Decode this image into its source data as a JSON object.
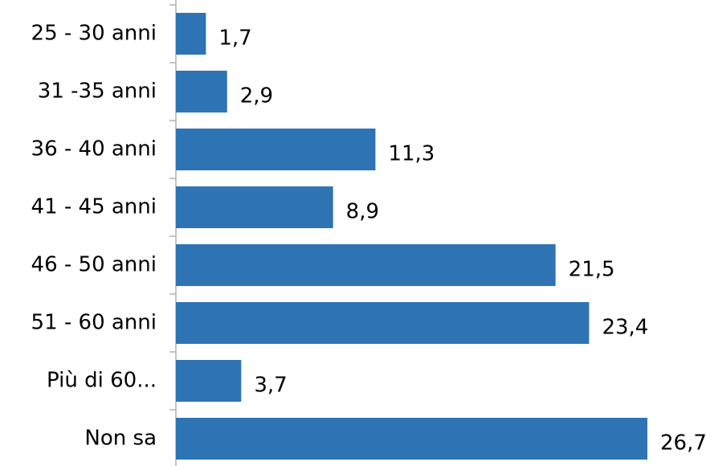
{
  "chart_data": {
    "type": "hbar",
    "categories": [
      "25 - 30 anni",
      "31 -35 anni",
      "36 - 40 anni",
      "41 - 45 anni",
      "46 - 50 anni",
      "51 - 60 anni",
      "Più di 60...",
      "Non sa"
    ],
    "values": [
      1.7,
      2.9,
      11.3,
      8.9,
      21.5,
      23.4,
      3.7,
      26.7
    ],
    "value_labels": [
      "1,7",
      "2,9",
      "11,3",
      "8,9",
      "21,5",
      "23,4",
      "3,7",
      "26,7"
    ],
    "color": "#2e74b5"
  }
}
